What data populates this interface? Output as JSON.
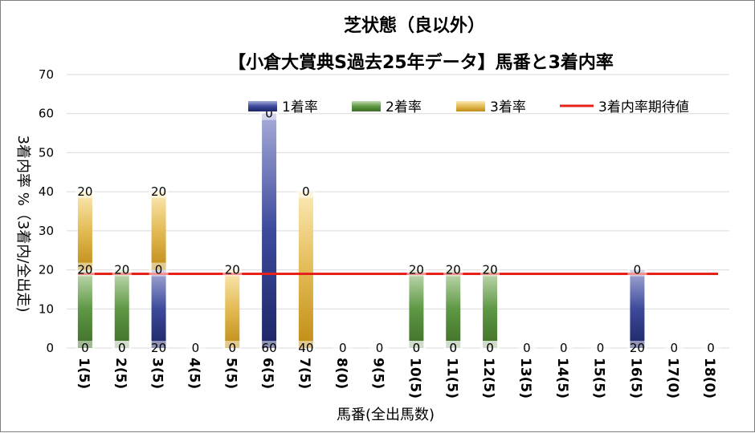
{
  "chart_data": {
    "type": "bar",
    "stacked": true,
    "title": "芝状態（良以外）",
    "subtitle": "【小倉大賞典S過去25年データ】馬番と3着内率",
    "xlabel": "馬番(全出馬数)",
    "ylabel": "3着内率 %（3着内/全出走)",
    "ylim": [
      0,
      70
    ],
    "yticks": [
      "0",
      "10",
      "20",
      "30",
      "40",
      "50",
      "60",
      "70"
    ],
    "grid": true,
    "legend_position": "top",
    "categories": [
      "1(5)",
      "2(5)",
      "3(5)",
      "4(5)",
      "5(5)",
      "6(5)",
      "7(5)",
      "8(0)",
      "9(5)",
      "10(5)",
      "11(5)",
      "12(5)",
      "13(5)",
      "14(5)",
      "15(5)",
      "16(5)",
      "17(0)",
      "18(0)"
    ],
    "series": [
      {
        "name": "1着率",
        "color": "#2f3d8f",
        "values": [
          0,
          0,
          20,
          0,
          0,
          60,
          0,
          0,
          0,
          0,
          0,
          0,
          0,
          0,
          0,
          20,
          0,
          0
        ]
      },
      {
        "name": "2着率",
        "color": "#4f8a35",
        "values": [
          20,
          20,
          0,
          0,
          0,
          0,
          0,
          0,
          0,
          20,
          20,
          20,
          0,
          0,
          0,
          0,
          0,
          0
        ]
      },
      {
        "name": "3着率",
        "color": "#c8961e",
        "values": [
          20,
          0,
          20,
          0,
          20,
          0,
          40,
          0,
          0,
          0,
          0,
          0,
          0,
          0,
          0,
          0,
          0,
          0
        ]
      }
    ],
    "bar_labels": [
      [
        "0",
        "20",
        "20"
      ],
      [
        "0",
        "20",
        "0"
      ],
      [
        "20",
        "0",
        "20"
      ],
      [
        "0"
      ],
      [
        "0",
        "20"
      ],
      [
        "60",
        "0"
      ],
      [
        "40",
        "0"
      ],
      [
        "0"
      ],
      [
        "0"
      ],
      [
        "0",
        "20",
        "0"
      ],
      [
        "0",
        "20",
        "0"
      ],
      [
        "0",
        "20",
        "0"
      ],
      [
        "0"
      ],
      [
        "0"
      ],
      [
        "0"
      ],
      [
        "20",
        "0"
      ],
      [
        "0"
      ],
      [
        "0"
      ]
    ],
    "reference_line": {
      "name": "3着内率期待値",
      "color": "#e8201a",
      "value": 19
    }
  }
}
